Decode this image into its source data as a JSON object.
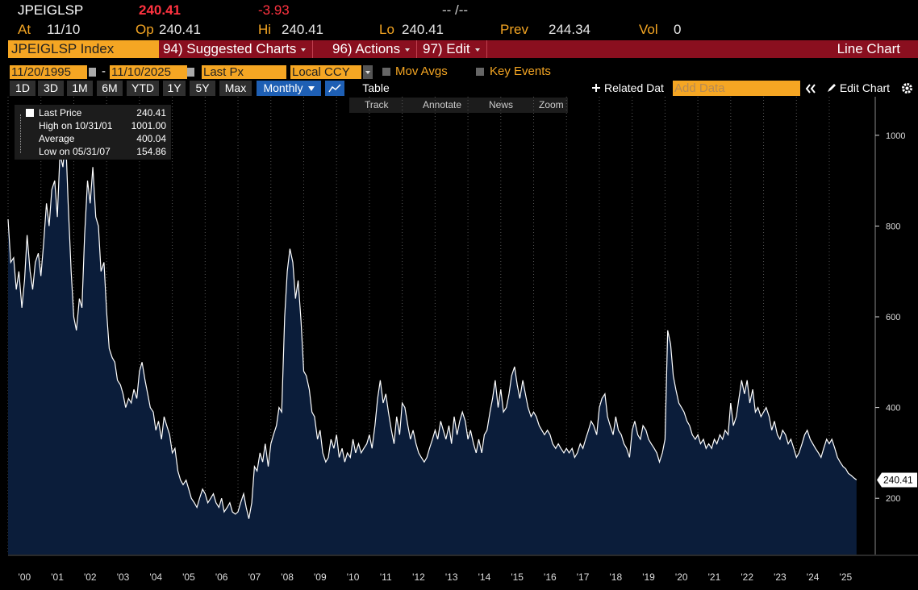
{
  "header": {
    "ticker": "JPEIGLSP",
    "last": "240.41",
    "change": "-3.93",
    "time": "-- /--"
  },
  "quote": {
    "at_label": "At",
    "at": "11/10",
    "op_label": "Op",
    "op": "240.41",
    "hi_label": "Hi",
    "hi": "240.41",
    "lo_label": "Lo",
    "lo": "240.41",
    "prev_label": "Prev",
    "prev": "244.34",
    "vol_label": "Vol",
    "vol": "0"
  },
  "toolbar": {
    "security": "JPEIGLSP Index",
    "menus": [
      "94) Suggested Charts",
      "96) Actions",
      "97) Edit"
    ],
    "view": "Line Chart"
  },
  "settings": {
    "start": "11/20/1995",
    "separator": "-",
    "end": "11/10/2025",
    "field": "Last Px",
    "currency": "Local CCY",
    "mov_avgs": "Mov Avgs",
    "key_events": "Key Events"
  },
  "periods": [
    "1D",
    "3D",
    "1M",
    "6M",
    "YTD",
    "1Y",
    "5Y",
    "Max"
  ],
  "controls": {
    "frequency": "Monthly",
    "table": "Table",
    "related": "Related Dat",
    "add_data": "Add Data",
    "edit_chart": "Edit Chart"
  },
  "tools": [
    "Track",
    "Annotate",
    "News",
    "Zoom"
  ],
  "legend": [
    {
      "label": "Last Price",
      "value": "240.41"
    },
    {
      "label": "High on 10/31/01",
      "value": "1001.00"
    },
    {
      "label": "Average",
      "value": "400.04"
    },
    {
      "label": "Low on 05/31/07",
      "value": "154.86"
    }
  ],
  "price_tag": "240.41",
  "chart_data": {
    "type": "area",
    "color": "#ffffff",
    "fill": "#0b1d3a",
    "grid": "x",
    "xlim": [
      2000,
      2026.4
    ],
    "ylim": [
      76,
      1085
    ],
    "yticks": [
      200,
      400,
      600,
      800,
      1000
    ],
    "xticks": [
      {
        "value": 2000,
        "label": "'00"
      },
      {
        "value": 2001,
        "label": "'01"
      },
      {
        "value": 2002,
        "label": "'02"
      },
      {
        "value": 2003,
        "label": "'03"
      },
      {
        "value": 2004,
        "label": "'04"
      },
      {
        "value": 2005,
        "label": "'05"
      },
      {
        "value": 2006,
        "label": "'06"
      },
      {
        "value": 2007,
        "label": "'07"
      },
      {
        "value": 2008,
        "label": "'08"
      },
      {
        "value": 2009,
        "label": "'09"
      },
      {
        "value": 2010,
        "label": "'10"
      },
      {
        "value": 2011,
        "label": "'11"
      },
      {
        "value": 2012,
        "label": "'12"
      },
      {
        "value": 2013,
        "label": "'13"
      },
      {
        "value": 2014,
        "label": "'14"
      },
      {
        "value": 2015,
        "label": "'15"
      },
      {
        "value": 2016,
        "label": "'16"
      },
      {
        "value": 2017,
        "label": "'17"
      },
      {
        "value": 2018,
        "label": "'18"
      },
      {
        "value": 2019,
        "label": "'19"
      },
      {
        "value": 2020,
        "label": "'20"
      },
      {
        "value": 2021,
        "label": "'21"
      },
      {
        "value": 2022,
        "label": "'22"
      },
      {
        "value": 2023,
        "label": "'23"
      },
      {
        "value": 2024,
        "label": "'24"
      },
      {
        "value": 2025,
        "label": "'25"
      }
    ],
    "x": [
      2000,
      2000.08,
      2000.17,
      2000.25,
      2000.33,
      2000.42,
      2000.5,
      2000.58,
      2000.67,
      2000.75,
      2000.83,
      2000.92,
      2001,
      2001.08,
      2001.17,
      2001.25,
      2001.33,
      2001.42,
      2001.5,
      2001.58,
      2001.67,
      2001.75,
      2001.83,
      2001.92,
      2002,
      2002.08,
      2002.17,
      2002.25,
      2002.33,
      2002.42,
      2002.5,
      2002.58,
      2002.67,
      2002.75,
      2002.83,
      2002.92,
      2003,
      2003.08,
      2003.17,
      2003.25,
      2003.33,
      2003.42,
      2003.5,
      2003.58,
      2003.67,
      2003.75,
      2003.83,
      2003.92,
      2004,
      2004.08,
      2004.17,
      2004.25,
      2004.33,
      2004.42,
      2004.5,
      2004.58,
      2004.67,
      2004.75,
      2004.83,
      2004.92,
      2005,
      2005.08,
      2005.17,
      2005.25,
      2005.33,
      2005.42,
      2005.5,
      2005.58,
      2005.67,
      2005.75,
      2005.83,
      2005.92,
      2006,
      2006.08,
      2006.17,
      2006.25,
      2006.33,
      2006.42,
      2006.5,
      2006.58,
      2006.67,
      2006.75,
      2006.83,
      2006.92,
      2007,
      2007.08,
      2007.17,
      2007.25,
      2007.33,
      2007.42,
      2007.5,
      2007.58,
      2007.67,
      2007.75,
      2007.83,
      2007.92,
      2008,
      2008.08,
      2008.17,
      2008.25,
      2008.33,
      2008.42,
      2008.5,
      2008.58,
      2008.67,
      2008.75,
      2008.83,
      2008.92,
      2009,
      2009.08,
      2009.17,
      2009.25,
      2009.33,
      2009.42,
      2009.5,
      2009.58,
      2009.67,
      2009.75,
      2009.83,
      2009.92,
      2010,
      2010.08,
      2010.17,
      2010.25,
      2010.33,
      2010.42,
      2010.5,
      2010.58,
      2010.67,
      2010.75,
      2010.83,
      2010.92,
      2011,
      2011.08,
      2011.17,
      2011.25,
      2011.33,
      2011.42,
      2011.5,
      2011.58,
      2011.67,
      2011.75,
      2011.83,
      2011.92,
      2012,
      2012.08,
      2012.17,
      2012.25,
      2012.33,
      2012.42,
      2012.5,
      2012.58,
      2012.67,
      2012.75,
      2012.83,
      2012.92,
      2013,
      2013.08,
      2013.17,
      2013.25,
      2013.33,
      2013.42,
      2013.5,
      2013.58,
      2013.67,
      2013.75,
      2013.83,
      2013.92,
      2014,
      2014.08,
      2014.17,
      2014.25,
      2014.33,
      2014.42,
      2014.5,
      2014.58,
      2014.67,
      2014.75,
      2014.83,
      2014.92,
      2015,
      2015.08,
      2015.17,
      2015.25,
      2015.33,
      2015.42,
      2015.5,
      2015.58,
      2015.67,
      2015.75,
      2015.83,
      2015.92,
      2016,
      2016.08,
      2016.17,
      2016.25,
      2016.33,
      2016.42,
      2016.5,
      2016.58,
      2016.67,
      2016.75,
      2016.83,
      2016.92,
      2017,
      2017.08,
      2017.17,
      2017.25,
      2017.33,
      2017.42,
      2017.5,
      2017.58,
      2017.67,
      2017.75,
      2017.83,
      2017.92,
      2018,
      2018.08,
      2018.17,
      2018.25,
      2018.33,
      2018.42,
      2018.5,
      2018.58,
      2018.67,
      2018.75,
      2018.83,
      2018.92,
      2019,
      2019.08,
      2019.17,
      2019.25,
      2019.33,
      2019.42,
      2019.5,
      2019.58,
      2019.67,
      2019.75,
      2019.83,
      2019.92,
      2020,
      2020.08,
      2020.17,
      2020.25,
      2020.33,
      2020.42,
      2020.5,
      2020.58,
      2020.67,
      2020.75,
      2020.83,
      2020.92,
      2021,
      2021.08,
      2021.17,
      2021.25,
      2021.33,
      2021.42,
      2021.5,
      2021.58,
      2021.67,
      2021.75,
      2021.83,
      2021.92,
      2022,
      2022.08,
      2022.17,
      2022.25,
      2022.33,
      2022.42,
      2022.5,
      2022.58,
      2022.67,
      2022.75,
      2022.83,
      2022.92,
      2023,
      2023.08,
      2023.17,
      2023.25,
      2023.33,
      2023.42,
      2023.5,
      2023.58,
      2023.67,
      2023.75,
      2023.83,
      2023.92,
      2024,
      2024.08,
      2024.17,
      2024.25,
      2024.33,
      2024.42,
      2024.5,
      2024.58,
      2024.67,
      2024.75,
      2024.83,
      2024.92,
      2025,
      2025.08,
      2025.17,
      2025.25,
      2025.33,
      2025.42,
      2025.5,
      2025.58,
      2025.67,
      2025.75,
      2025.83
    ],
    "values": [
      815,
      720,
      730,
      660,
      700,
      620,
      680,
      780,
      700,
      660,
      720,
      740,
      690,
      760,
      850,
      800,
      880,
      900,
      820,
      960,
      930,
      1001,
      850,
      700,
      600,
      570,
      640,
      620,
      780,
      900,
      850,
      930,
      820,
      800,
      700,
      720,
      610,
      530,
      510,
      500,
      460,
      450,
      430,
      400,
      420,
      410,
      440,
      420,
      480,
      500,
      460,
      430,
      400,
      390,
      350,
      370,
      330,
      380,
      360,
      340,
      300,
      310,
      260,
      240,
      230,
      240,
      220,
      200,
      190,
      180,
      200,
      220,
      210,
      190,
      200,
      210,
      190,
      180,
      200,
      170,
      180,
      190,
      170,
      165,
      170,
      190,
      210,
      180,
      154.86,
      190,
      270,
      260,
      300,
      280,
      320,
      270,
      320,
      340,
      360,
      400,
      390,
      600,
      700,
      750,
      720,
      640,
      680,
      590,
      480,
      470,
      440,
      390,
      380,
      330,
      350,
      300,
      280,
      290,
      330,
      310,
      340,
      290,
      310,
      280,
      300,
      290,
      330,
      300,
      320,
      300,
      310,
      320,
      340,
      310,
      360,
      420,
      460,
      410,
      430,
      390,
      350,
      320,
      380,
      340,
      410,
      400,
      360,
      330,
      350,
      320,
      300,
      290,
      280,
      290,
      310,
      330,
      350,
      330,
      370,
      350,
      330,
      360,
      320,
      380,
      340,
      370,
      390,
      370,
      330,
      350,
      320,
      300,
      330,
      300,
      340,
      350,
      390,
      420,
      460,
      400,
      440,
      390,
      400,
      430,
      470,
      490,
      450,
      420,
      460,
      430,
      400,
      380,
      390,
      380,
      360,
      350,
      340,
      350,
      340,
      320,
      310,
      320,
      310,
      300,
      310,
      300,
      310,
      290,
      300,
      320,
      310,
      330,
      350,
      370,
      360,
      340,
      400,
      420,
      430,
      380,
      360,
      340,
      380,
      350,
      340,
      320,
      310,
      290,
      350,
      370,
      340,
      330,
      360,
      350,
      330,
      320,
      310,
      300,
      280,
      300,
      330,
      570,
      540,
      470,
      440,
      410,
      400,
      390,
      370,
      360,
      340,
      330,
      340,
      320,
      330,
      310,
      320,
      310,
      330,
      320,
      340,
      330,
      350,
      340,
      410,
      360,
      380,
      420,
      460,
      430,
      460,
      410,
      440,
      390,
      400,
      380,
      390,
      400,
      380,
      350,
      370,
      340,
      330,
      350,
      340,
      320,
      330,
      310,
      290,
      300,
      320,
      340,
      350,
      330,
      320,
      310,
      300,
      290,
      310,
      330,
      320,
      330,
      310,
      290,
      280,
      270,
      265,
      255,
      250,
      245,
      240.41
    ]
  }
}
